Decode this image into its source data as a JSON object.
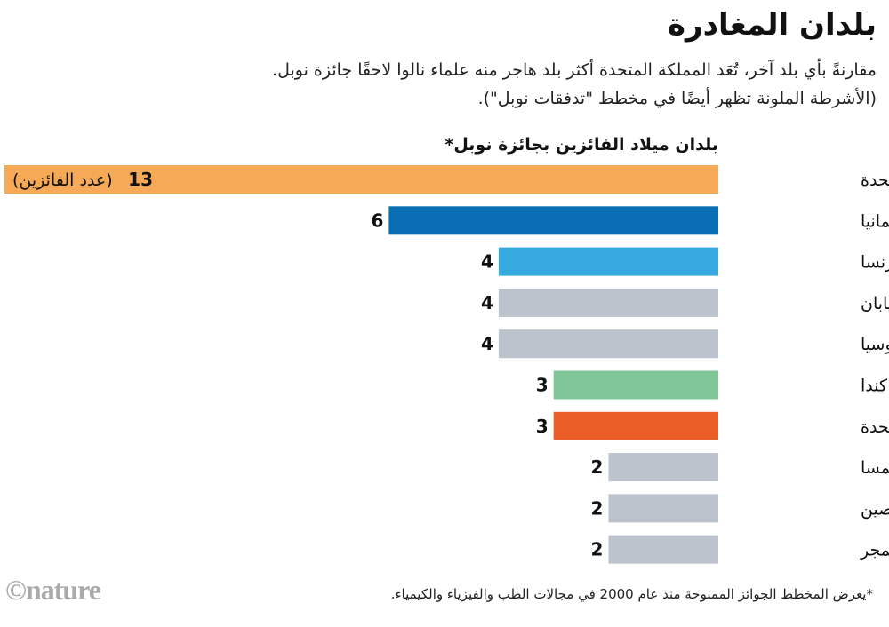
{
  "header": {
    "title": "بلدان المغادرة",
    "subtitle_line1": "مقارنةً بأي بلد آخر، تُعَد المملكة المتحدة أكثر بلد هاجر منه علماء نالوا لاحقًا جائزة نوبل.",
    "subtitle_line2": "(الأشرطة الملونة تظهر أيضًا في مخطط \"تدفقات نوبل\")."
  },
  "chart_data": {
    "type": "bar",
    "orientation": "horizontal",
    "title": "بلدان ميلاد الفائزين بجائزة نوبل*",
    "categories": [
      "المملكة المتحدة",
      "ألمانيا",
      "فرنسا",
      "اليابان",
      "روسيا",
      "كندا",
      "الولايات المتحدة",
      "النمسا",
      "الصين",
      "المجر"
    ],
    "values": [
      13,
      6,
      4,
      4,
      4,
      3,
      3,
      2,
      2,
      2
    ],
    "colors": [
      "#f6aa57",
      "#0a6eb5",
      "#36a9e0",
      "#bcc3cc",
      "#bcc3cc",
      "#80c597",
      "#eb5e28",
      "#bcc3cc",
      "#bcc3cc",
      "#bcc3cc"
    ],
    "first_bar_annotation": "(عدد الفائزين)",
    "xlim": [
      0,
      13
    ]
  },
  "footer": {
    "note": "*يعرض المخطط الجوائز الممنوحة منذ عام 2000 في مجالات الطب والفيزياء والكيمياء.",
    "logo": "©nature"
  }
}
